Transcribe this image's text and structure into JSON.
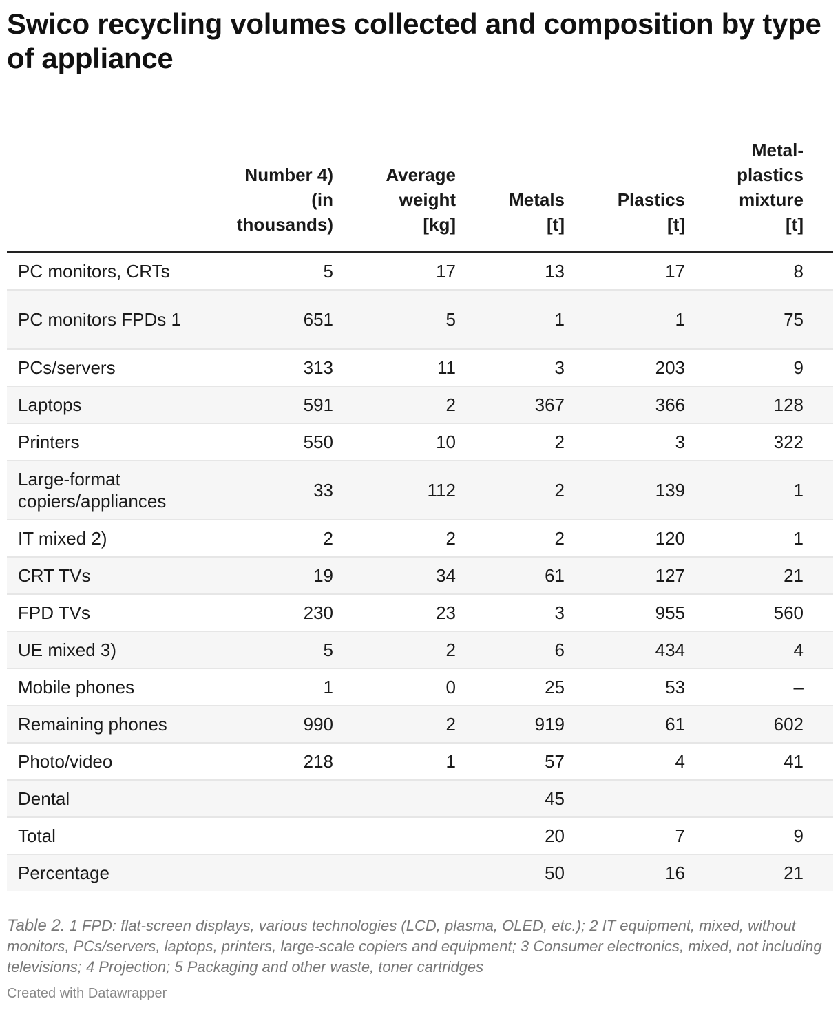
{
  "title": "Swico recycling volumes collected and composition by type of appliance",
  "chart_data": {
    "type": "table",
    "columns": [
      "",
      "Number 4) (in thousands)",
      "Average weight [kg]",
      "Metals [t]",
      "Plastics [t]",
      "Metal-plastics mixture [t]"
    ],
    "rows": [
      [
        "PC monitors, CRTs",
        "5",
        "17",
        "13",
        "17",
        "8"
      ],
      [
        "PC monitors FPDs 1",
        "651",
        "5",
        "1",
        "1",
        "75"
      ],
      [
        "PCs/servers",
        "313",
        "11",
        "3",
        "203",
        "9"
      ],
      [
        "Laptops",
        "591",
        "2",
        "367",
        "366",
        "128"
      ],
      [
        "Printers",
        "550",
        "10",
        "2",
        "3",
        "322"
      ],
      [
        "Large-format copiers/appliances",
        "33",
        "112",
        "2",
        "139",
        "1"
      ],
      [
        "IT mixed 2)",
        "2",
        "2",
        "2",
        "120",
        "1"
      ],
      [
        "CRT TVs",
        "19",
        "34",
        "61",
        "127",
        "21"
      ],
      [
        "FPD TVs",
        "230",
        "23",
        "3",
        "955",
        "560"
      ],
      [
        "UE mixed 3)",
        "5",
        "2",
        "6",
        "434",
        "4"
      ],
      [
        "Mobile phones",
        "1",
        "0",
        "25",
        "53",
        "–"
      ],
      [
        "Remaining phones",
        "990",
        "2",
        "919",
        "61",
        "602"
      ],
      [
        "Photo/video",
        "218",
        "1",
        "57",
        "4",
        "41"
      ],
      [
        "Dental",
        "",
        "",
        "45",
        "",
        ""
      ],
      [
        "Total",
        "",
        "",
        "20",
        "7",
        "9"
      ],
      [
        "Percentage",
        "",
        "",
        "50",
        "16",
        "21"
      ]
    ]
  },
  "notes": {
    "tag": "Table 2.",
    "text": " 1 FPD: flat-screen displays, various technologies (LCD, plasma, OLED, etc.); 2 IT equipment, mixed, without monitors, PCs/servers, laptops, printers, large-scale copiers and equipment; 3 Consumer electronics, mixed, not including televisions; 4 Projection; 5 Packaging and other waste, toner cartridges"
  },
  "credit": "Created with Datawrapper"
}
